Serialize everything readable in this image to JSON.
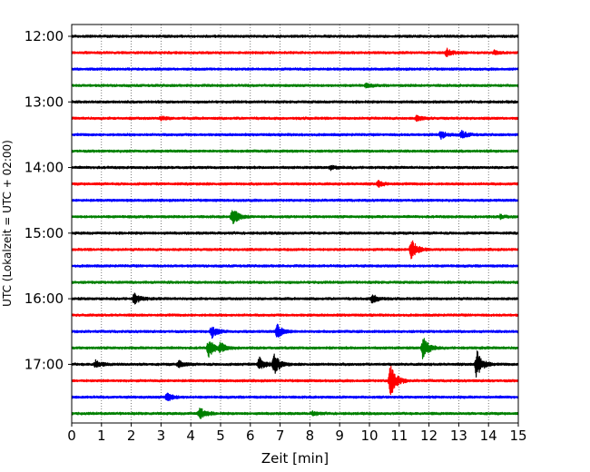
{
  "chart_data": {
    "type": "line",
    "subtype": "helicorder",
    "xlabel": "Zeit  [min]",
    "ylabel": "UTC (Lokalzeit = UTC + 02:00)",
    "xlim": [
      0,
      15
    ],
    "xticks": [
      0,
      1,
      2,
      3,
      4,
      5,
      6,
      7,
      8,
      9,
      10,
      11,
      12,
      13,
      14,
      15
    ],
    "xgrid": "dotted vertical lines at each minute",
    "yticks": [
      {
        "trace_index": 0,
        "label": "12:00"
      },
      {
        "trace_index": 4,
        "label": "13:00"
      },
      {
        "trace_index": 8,
        "label": "14:00"
      },
      {
        "trace_index": 12,
        "label": "15:00"
      },
      {
        "trace_index": 16,
        "label": "16:00"
      },
      {
        "trace_index": 20,
        "label": "17:00"
      }
    ],
    "trace_colors": [
      "#000000",
      "#ff0000",
      "#0000ff",
      "#008000"
    ],
    "traces_per_hour": 4,
    "minutes_per_trace": 15,
    "series": [
      {
        "start": "12:00",
        "color": "#000000",
        "events": []
      },
      {
        "start": "12:15",
        "color": "#ff0000",
        "events": [
          {
            "t": 12.6,
            "amp": 4
          },
          {
            "t": 14.2,
            "amp": 2
          }
        ]
      },
      {
        "start": "12:30",
        "color": "#0000ff",
        "events": []
      },
      {
        "start": "12:45",
        "color": "#008000",
        "events": [
          {
            "t": 9.9,
            "amp": 2
          }
        ]
      },
      {
        "start": "13:00",
        "color": "#000000",
        "events": []
      },
      {
        "start": "13:15",
        "color": "#ff0000",
        "events": [
          {
            "t": 3.0,
            "amp": 2
          },
          {
            "t": 11.6,
            "amp": 3
          }
        ]
      },
      {
        "start": "13:30",
        "color": "#0000ff",
        "events": [
          {
            "t": 12.4,
            "amp": 4
          },
          {
            "t": 13.1,
            "amp": 4
          }
        ]
      },
      {
        "start": "13:45",
        "color": "#008000",
        "events": []
      },
      {
        "start": "14:00",
        "color": "#000000",
        "events": [
          {
            "t": 8.7,
            "amp": 2
          }
        ]
      },
      {
        "start": "14:15",
        "color": "#ff0000",
        "events": [
          {
            "t": 10.3,
            "amp": 3
          }
        ]
      },
      {
        "start": "14:30",
        "color": "#0000ff",
        "events": []
      },
      {
        "start": "14:45",
        "color": "#008000",
        "events": [
          {
            "t": 5.4,
            "amp": 10
          },
          {
            "t": 14.4,
            "amp": 2
          }
        ]
      },
      {
        "start": "15:00",
        "color": "#000000",
        "events": []
      },
      {
        "start": "15:15",
        "color": "#ff0000",
        "events": [
          {
            "t": 11.4,
            "amp": 12
          }
        ]
      },
      {
        "start": "15:30",
        "color": "#0000ff",
        "events": []
      },
      {
        "start": "15:45",
        "color": "#008000",
        "events": []
      },
      {
        "start": "16:00",
        "color": "#000000",
        "events": [
          {
            "t": 2.1,
            "amp": 6
          },
          {
            "t": 10.1,
            "amp": 5
          }
        ]
      },
      {
        "start": "16:15",
        "color": "#ff0000",
        "events": []
      },
      {
        "start": "16:30",
        "color": "#0000ff",
        "events": [
          {
            "t": 4.7,
            "amp": 7
          },
          {
            "t": 6.9,
            "amp": 8
          }
        ]
      },
      {
        "start": "16:45",
        "color": "#008000",
        "events": [
          {
            "t": 4.6,
            "amp": 10
          },
          {
            "t": 5.0,
            "amp": 5
          },
          {
            "t": 11.8,
            "amp": 13
          }
        ]
      },
      {
        "start": "17:00",
        "color": "#000000",
        "events": [
          {
            "t": 0.8,
            "amp": 4
          },
          {
            "t": 3.6,
            "amp": 4
          },
          {
            "t": 6.3,
            "amp": 8
          },
          {
            "t": 6.8,
            "amp": 11
          },
          {
            "t": 13.6,
            "amp": 16
          }
        ]
      },
      {
        "start": "17:15",
        "color": "#ff0000",
        "events": [
          {
            "t": 10.7,
            "amp": 20
          }
        ]
      },
      {
        "start": "17:30",
        "color": "#0000ff",
        "events": [
          {
            "t": 3.2,
            "amp": 5
          }
        ]
      },
      {
        "start": "17:45",
        "color": "#008000",
        "events": [
          {
            "t": 4.3,
            "amp": 7
          },
          {
            "t": 8.1,
            "amp": 2
          }
        ]
      }
    ]
  }
}
